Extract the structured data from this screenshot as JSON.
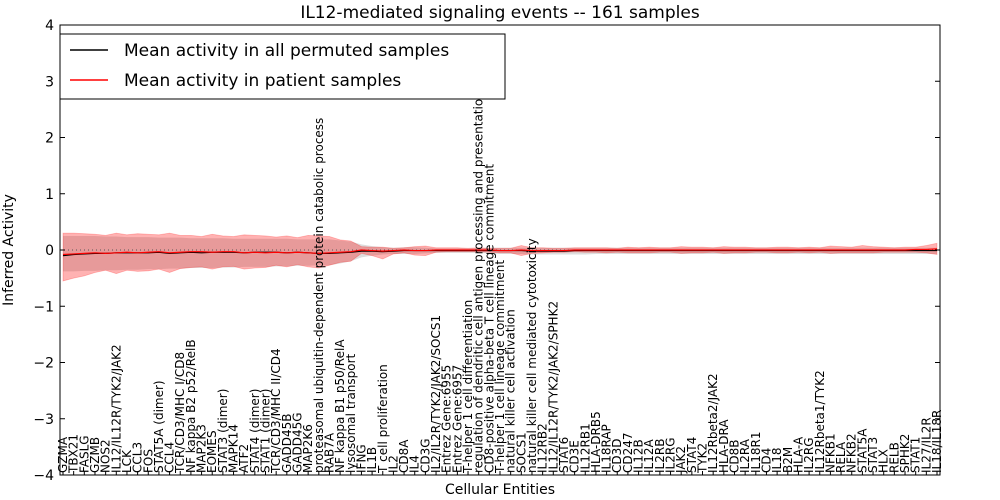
{
  "chart_data": {
    "type": "line",
    "title": "IL12-mediated signaling events -- 161 samples",
    "xlabel": "Cellular Entities",
    "ylabel": "Inferred Activity",
    "ylim": [
      -4,
      4
    ],
    "yticks": [
      -4,
      -3,
      -2,
      -1,
      0,
      1,
      2,
      3,
      4
    ],
    "legend_position": "top-left",
    "categories": [
      "GZMA",
      "TBX21",
      "FASLG",
      "GZMB",
      "NOS2",
      "IL12/IL12R/TYK2/JAK2",
      "LCK",
      "CCL3",
      "FOS",
      "STAT5A (dimer)",
      "CCL4",
      "TCR/CD3/MHC I/CD8",
      "NF kappa B2 p52/RelB",
      "MAP2K3",
      "EOMES",
      "STAT3 (dimer)",
      "MAPK14",
      "ATF2",
      "STAT4 (dimer)",
      "STAT1 (dimer)",
      "TCR/CD3/MHC II/CD4",
      "GADD45B",
      "GADD45G",
      "MAP2K6",
      "proteasomal ubiquitin-dependent protein catabolic process",
      "RAB7A",
      "NF kappa B1 p50/RelA",
      "lysosomal transport",
      "IFNG",
      "IL1B",
      "T cell proliferation",
      "IL2",
      "CD8A",
      "IL4",
      "CD3G",
      "IL2/IL2R/TYK2/JAK2/SOCS1",
      "Entrez Gene:6955",
      "Entrez Gene:6957",
      "T-helper 1 cell differentiation",
      "regulation of dendritic cell antigen processing and presentation",
      "CD8-positive alpha-beta T cell lineage commitment",
      "T-helper 1 cell lineage commitment",
      "natural killer cell activation",
      "SOCS1",
      "natural killer cell mediated cytotoxicity",
      "IL12RB2",
      "IL12/IL12R/TYK2/JAK2/SPHK2",
      "STAT6",
      "CD3E",
      "IL12RB1",
      "HLA-DRB5",
      "IL18RAP",
      "CD3D",
      "CD247",
      "IL12B",
      "IL12A",
      "IL2RB",
      "IL2RG",
      "JAK2",
      "STAT4",
      "TYK2",
      "IL12Rbeta2/JAK2",
      "HLA-DRA",
      "CD8B",
      "IL2RA",
      "IL18R1",
      "CD4",
      "IL18",
      "B2M",
      "HLA-A",
      "IL2RG",
      "IL12Rbeta1/TYK2",
      "NFKB1",
      "RELA",
      "NFKB2",
      "STAT5A",
      "STAT3",
      "HLX",
      "RELB",
      "SPHK2",
      "STAT1",
      "IL27/IL2R",
      "IL18/IL18R"
    ],
    "series": [
      {
        "name": "Mean activity in all permuted samples",
        "color": "#000000",
        "values": [
          -0.1,
          -0.08,
          -0.07,
          -0.06,
          -0.06,
          -0.05,
          -0.05,
          -0.05,
          -0.05,
          -0.04,
          -0.06,
          -0.05,
          -0.04,
          -0.05,
          -0.04,
          -0.04,
          -0.04,
          -0.05,
          -0.04,
          -0.04,
          -0.04,
          -0.05,
          -0.04,
          -0.05,
          -0.06,
          -0.06,
          -0.05,
          -0.04,
          -0.02,
          -0.02,
          -0.03,
          -0.02,
          -0.01,
          -0.01,
          -0.01,
          -0.01,
          -0.01,
          -0.01,
          -0.01,
          -0.01,
          -0.01,
          -0.01,
          -0.01,
          -0.01,
          -0.02,
          -0.02,
          -0.02,
          -0.02,
          -0.01,
          -0.01,
          -0.01,
          -0.01,
          -0.01,
          -0.01,
          -0.01,
          -0.01,
          -0.01,
          -0.01,
          -0.01,
          -0.01,
          -0.01,
          -0.01,
          -0.01,
          -0.01,
          -0.01,
          -0.01,
          -0.01,
          -0.01,
          -0.01,
          -0.01,
          -0.01,
          -0.01,
          -0.01,
          -0.01,
          -0.01,
          -0.01,
          -0.01,
          -0.01,
          -0.01,
          -0.01,
          -0.01,
          -0.01,
          -0.01
        ],
        "band_upper": [
          0.25,
          0.25,
          0.25,
          0.25,
          0.24,
          0.24,
          0.23,
          0.23,
          0.23,
          0.22,
          0.22,
          0.22,
          0.21,
          0.21,
          0.21,
          0.21,
          0.2,
          0.2,
          0.2,
          0.2,
          0.2,
          0.2,
          0.19,
          0.19,
          0.19,
          0.19,
          0.17,
          0.15,
          0.1,
          0.07,
          0.05,
          0.04,
          0.05,
          0.05,
          0.04,
          0.03,
          0.03,
          0.03,
          0.03,
          0.03,
          0.04,
          0.04,
          0.04,
          0.04,
          0.04,
          0.04,
          0.04,
          0.04,
          0.04,
          0.04,
          0.04,
          0.04,
          0.04,
          0.04,
          0.04,
          0.04,
          0.04,
          0.04,
          0.04,
          0.04,
          0.04,
          0.04,
          0.04,
          0.04,
          0.04,
          0.04,
          0.04,
          0.04,
          0.04,
          0.04,
          0.04,
          0.04,
          0.04,
          0.04,
          0.04,
          0.04,
          0.04,
          0.04,
          0.04,
          0.04,
          0.04,
          0.04,
          0.04
        ],
        "band_lower": [
          -0.38,
          -0.38,
          -0.37,
          -0.37,
          -0.36,
          -0.36,
          -0.35,
          -0.35,
          -0.34,
          -0.34,
          -0.33,
          -0.33,
          -0.32,
          -0.32,
          -0.32,
          -0.31,
          -0.31,
          -0.3,
          -0.3,
          -0.3,
          -0.29,
          -0.29,
          -0.28,
          -0.28,
          -0.27,
          -0.27,
          -0.24,
          -0.2,
          -0.13,
          -0.1,
          -0.08,
          -0.07,
          -0.07,
          -0.07,
          -0.06,
          -0.05,
          -0.05,
          -0.05,
          -0.05,
          -0.05,
          -0.06,
          -0.07,
          -0.07,
          -0.07,
          -0.08,
          -0.08,
          -0.08,
          -0.08,
          -0.08,
          -0.08,
          -0.07,
          -0.07,
          -0.07,
          -0.07,
          -0.07,
          -0.07,
          -0.07,
          -0.07,
          -0.07,
          -0.07,
          -0.07,
          -0.07,
          -0.07,
          -0.07,
          -0.07,
          -0.07,
          -0.07,
          -0.07,
          -0.07,
          -0.07,
          -0.07,
          -0.07,
          -0.07,
          -0.07,
          -0.07,
          -0.07,
          -0.07,
          -0.07,
          -0.07,
          -0.07,
          -0.07,
          -0.07,
          -0.07
        ]
      },
      {
        "name": "Mean activity in patient samples",
        "color": "#ff0000",
        "values": [
          -0.08,
          -0.07,
          -0.06,
          -0.05,
          -0.06,
          -0.05,
          -0.04,
          -0.05,
          -0.04,
          -0.03,
          -0.05,
          -0.04,
          -0.03,
          -0.03,
          -0.04,
          -0.03,
          -0.03,
          -0.05,
          -0.04,
          -0.05,
          -0.04,
          -0.05,
          -0.04,
          -0.05,
          -0.06,
          -0.05,
          -0.04,
          -0.03,
          0.0,
          -0.01,
          -0.02,
          -0.01,
          0.0,
          -0.01,
          -0.01,
          0.0,
          0.0,
          0.0,
          0.0,
          0.0,
          0.0,
          -0.01,
          -0.01,
          0.0,
          -0.01,
          -0.01,
          -0.01,
          -0.01,
          0.0,
          0.0,
          0.0,
          0.0,
          0.0,
          0.0,
          0.0,
          0.0,
          0.0,
          0.0,
          0.0,
          0.0,
          0.0,
          0.0,
          0.0,
          0.0,
          0.0,
          0.0,
          0.0,
          0.0,
          0.0,
          0.0,
          0.0,
          0.0,
          0.0,
          0.0,
          0.0,
          0.0,
          0.0,
          0.0,
          0.0,
          0.0,
          0.01,
          0.01,
          0.02
        ],
        "band_upper": [
          0.3,
          0.3,
          0.29,
          0.28,
          0.26,
          0.3,
          0.27,
          0.29,
          0.28,
          0.27,
          0.3,
          0.26,
          0.26,
          0.24,
          0.28,
          0.25,
          0.24,
          0.27,
          0.26,
          0.25,
          0.23,
          0.25,
          0.22,
          0.26,
          0.25,
          0.24,
          0.18,
          0.16,
          0.06,
          0.05,
          0.05,
          0.03,
          0.04,
          0.06,
          0.07,
          0.04,
          0.04,
          0.04,
          0.03,
          0.04,
          0.03,
          0.03,
          0.03,
          0.08,
          0.04,
          0.04,
          0.03,
          0.03,
          0.04,
          0.04,
          0.04,
          0.04,
          0.03,
          0.05,
          0.04,
          0.05,
          0.04,
          0.04,
          0.06,
          0.05,
          0.05,
          0.04,
          0.06,
          0.05,
          0.05,
          0.04,
          0.04,
          0.05,
          0.05,
          0.04,
          0.05,
          0.04,
          0.07,
          0.06,
          0.05,
          0.08,
          0.06,
          0.05,
          0.04,
          0.05,
          0.05,
          0.08,
          0.12
        ],
        "band_lower": [
          -0.55,
          -0.5,
          -0.46,
          -0.4,
          -0.36,
          -0.42,
          -0.36,
          -0.38,
          -0.37,
          -0.34,
          -0.4,
          -0.33,
          -0.31,
          -0.3,
          -0.34,
          -0.3,
          -0.29,
          -0.34,
          -0.32,
          -0.31,
          -0.27,
          -0.3,
          -0.26,
          -0.3,
          -0.32,
          -0.27,
          -0.22,
          -0.2,
          -0.06,
          -0.1,
          -0.16,
          -0.07,
          -0.05,
          -0.09,
          -0.1,
          -0.04,
          -0.03,
          -0.03,
          -0.03,
          -0.03,
          -0.04,
          -0.05,
          -0.05,
          -0.1,
          -0.06,
          -0.05,
          -0.04,
          -0.04,
          -0.03,
          -0.04,
          -0.04,
          -0.05,
          -0.04,
          -0.05,
          -0.05,
          -0.05,
          -0.04,
          -0.04,
          -0.06,
          -0.05,
          -0.05,
          -0.04,
          -0.06,
          -0.05,
          -0.05,
          -0.04,
          -0.04,
          -0.05,
          -0.05,
          -0.04,
          -0.05,
          -0.04,
          -0.06,
          -0.05,
          -0.05,
          -0.05,
          -0.05,
          -0.04,
          -0.04,
          -0.04,
          -0.04,
          -0.05,
          -0.08
        ]
      }
    ]
  }
}
